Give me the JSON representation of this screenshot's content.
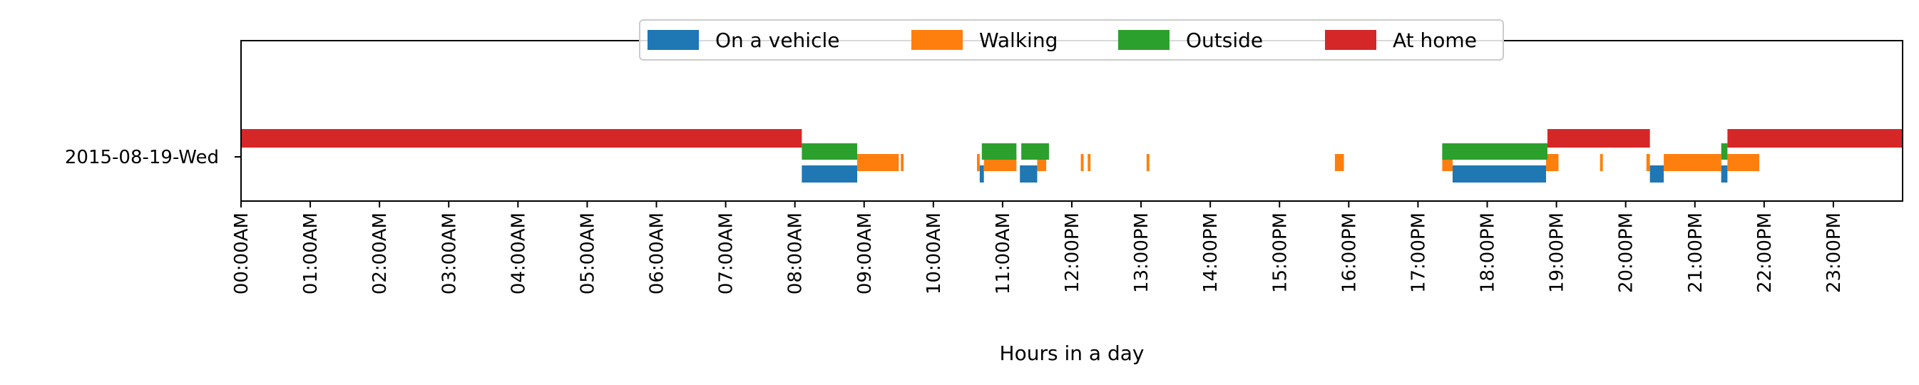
{
  "chart_data": {
    "type": "timeline",
    "row_label": "2015-08-19-Wed",
    "xlabel": "Hours in a day",
    "xlim": [
      0,
      24
    ],
    "x_ticks": [
      "00:00AM",
      "01:00AM",
      "02:00AM",
      "03:00AM",
      "04:00AM",
      "05:00AM",
      "06:00AM",
      "07:00AM",
      "08:00AM",
      "09:00AM",
      "10:00AM",
      "11:00AM",
      "12:00PM",
      "13:00PM",
      "14:00PM",
      "15:00PM",
      "16:00PM",
      "17:00PM",
      "18:00PM",
      "19:00PM",
      "20:00PM",
      "21:00PM",
      "22:00PM",
      "23:00PM"
    ],
    "legend_position": "upper center",
    "series": [
      {
        "name": "On a vehicle",
        "color": "#1f77b4",
        "lane": 0,
        "intervals": [
          [
            8.1,
            8.9
          ],
          [
            10.67,
            10.73
          ],
          [
            11.25,
            11.5
          ],
          [
            20.35,
            20.55
          ],
          [
            21.38,
            21.47
          ],
          [
            17.5,
            18.85
          ]
        ]
      },
      {
        "name": "Walking",
        "color": "#ff7f0e",
        "lane": 1,
        "intervals": [
          [
            8.9,
            9.5
          ],
          [
            9.53,
            9.57
          ],
          [
            10.63,
            10.67
          ],
          [
            10.73,
            11.2
          ],
          [
            11.5,
            11.63
          ],
          [
            12.13,
            12.17
          ],
          [
            12.23,
            12.27
          ],
          [
            13.08,
            13.12
          ],
          [
            15.8,
            15.93
          ],
          [
            17.35,
            17.5
          ],
          [
            18.85,
            19.03
          ],
          [
            19.63,
            19.67
          ],
          [
            20.3,
            20.35
          ],
          [
            20.55,
            21.38
          ],
          [
            21.47,
            21.93
          ]
        ]
      },
      {
        "name": "Outside",
        "color": "#2ca02c",
        "lane": 2,
        "intervals": [
          [
            8.1,
            8.9
          ],
          [
            10.7,
            11.2
          ],
          [
            11.27,
            11.67
          ],
          [
            17.35,
            18.87
          ],
          [
            21.38,
            21.47
          ]
        ]
      },
      {
        "name": "At home",
        "color": "#d62728",
        "lane": 3,
        "intervals": [
          [
            0,
            8.1
          ],
          [
            18.87,
            20.35
          ],
          [
            21.47,
            24
          ]
        ]
      }
    ]
  }
}
